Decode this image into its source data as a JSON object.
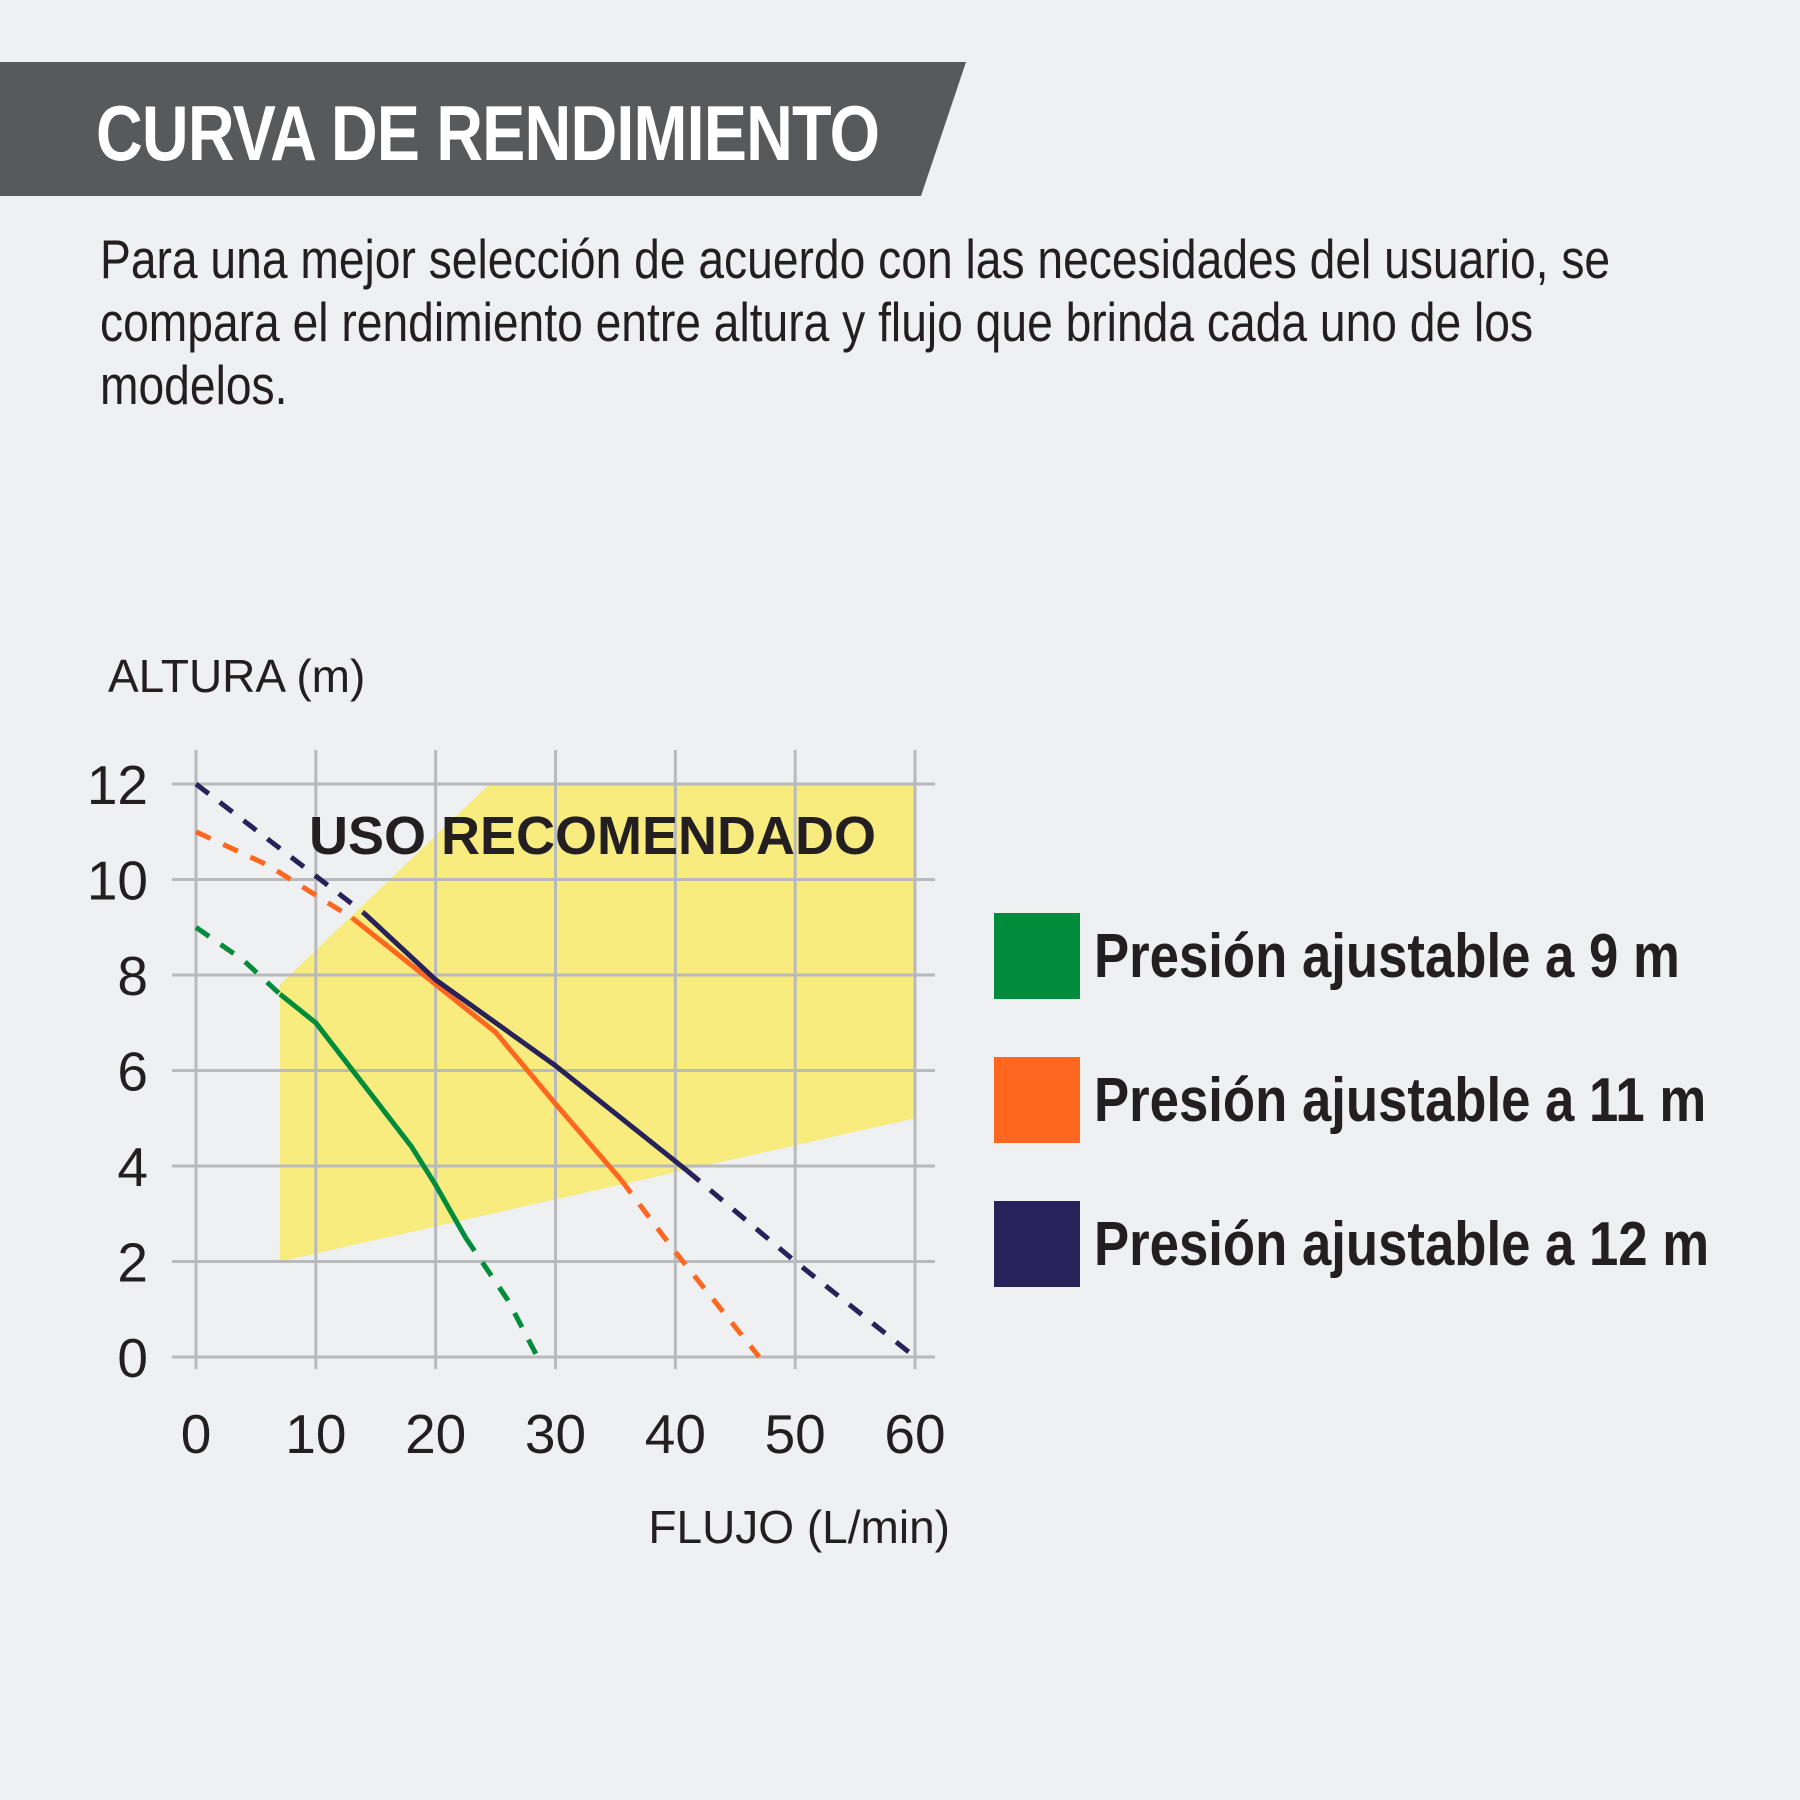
{
  "title": "CURVA DE RENDIMIENTO",
  "description": "Para una mejor selección de acuerdo con las necesidades del usuario, se compara el rendimiento entre altura y flujo que brinda cada uno de los modelos.",
  "colors": {
    "banner": "#58595b",
    "recommended_zone": "#f7ec7d",
    "grid": "#b9babd"
  },
  "chart_data": {
    "type": "line",
    "xlabel": "FLUJO (L/min)",
    "ylabel": "ALTURA (m)",
    "xlim": [
      0,
      60
    ],
    "ylim": [
      0,
      12
    ],
    "x_ticks": [
      "0",
      "10",
      "20",
      "30",
      "40",
      "50",
      "60"
    ],
    "y_ticks": [
      "0",
      "2",
      "4",
      "6",
      "8",
      "10",
      "12"
    ],
    "grid": true,
    "legend_position": "right",
    "recommended_zone": {
      "label": "USO RECOMENDADO",
      "polygon": [
        [
          7,
          2
        ],
        [
          60,
          5
        ],
        [
          60,
          12
        ],
        [
          24.5,
          12
        ],
        [
          7,
          7.8
        ]
      ]
    },
    "series": [
      {
        "name": "Presión ajustable a 9 m",
        "color": "#008c3a",
        "dashed_before": [
          [
            0,
            9
          ],
          [
            4,
            8.3
          ],
          [
            7,
            7.6
          ]
        ],
        "solid": [
          [
            7,
            7.6
          ],
          [
            10,
            7
          ],
          [
            14,
            5.7
          ],
          [
            18,
            4.4
          ],
          [
            20,
            3.6
          ],
          [
            22.5,
            2.5
          ]
        ],
        "dashed_after": [
          [
            22.5,
            2.5
          ],
          [
            26,
            1.2
          ],
          [
            28.5,
            0
          ]
        ]
      },
      {
        "name": "Presión ajustable a 11 m",
        "color": "#ff6720",
        "dashed_before": [
          [
            0,
            11
          ],
          [
            6,
            10.3
          ],
          [
            13,
            9.2
          ]
        ],
        "solid": [
          [
            13,
            9.2
          ],
          [
            20,
            7.8
          ],
          [
            25,
            6.8
          ],
          [
            30,
            5.3
          ],
          [
            35.5,
            3.7
          ]
        ],
        "dashed_after": [
          [
            35.5,
            3.7
          ],
          [
            40,
            2.2
          ],
          [
            47,
            0
          ]
        ]
      },
      {
        "name": "Presión ajustable a 12 m",
        "color": "#27225a",
        "dashed_before": [
          [
            0,
            12
          ],
          [
            14,
            9.3
          ]
        ],
        "solid": [
          [
            14,
            9.3
          ],
          [
            20,
            7.9
          ],
          [
            30,
            6.1
          ],
          [
            41,
            3.9
          ]
        ],
        "dashed_after": [
          [
            41,
            3.9
          ],
          [
            50,
            2
          ],
          [
            60,
            0
          ]
        ]
      }
    ]
  }
}
